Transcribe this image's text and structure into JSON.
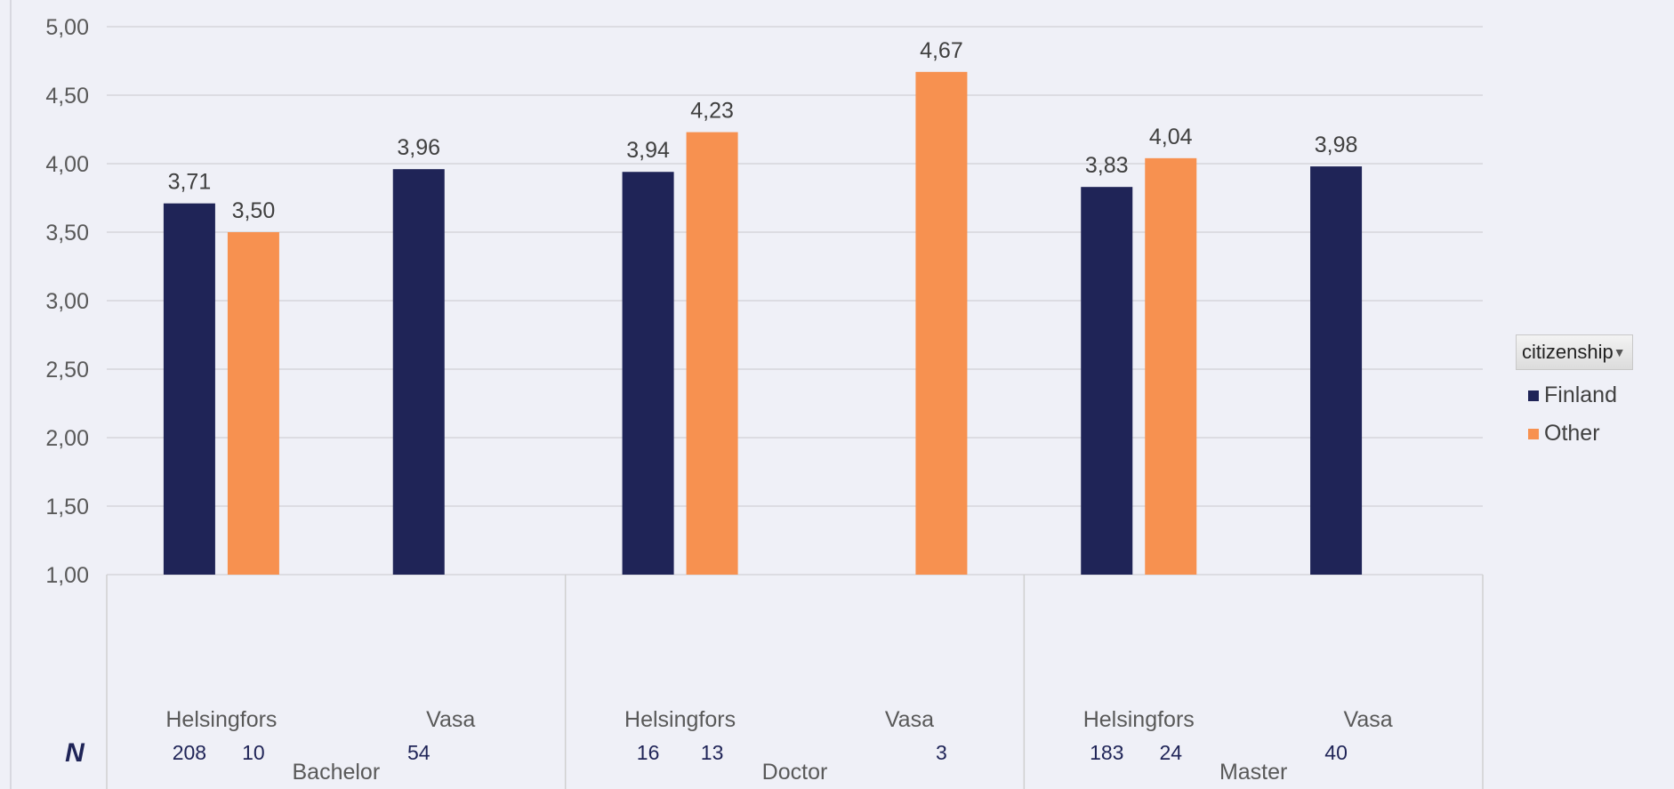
{
  "chart_data": {
    "type": "bar",
    "title": "",
    "ylim": [
      1.0,
      5.0
    ],
    "yticks": [
      "1,00",
      "1,50",
      "2,00",
      "2,50",
      "3,00",
      "3,50",
      "4,00",
      "4,50",
      "5,00"
    ],
    "grid": true,
    "legend_position": "right",
    "legend_title": "citizenship",
    "series": [
      {
        "name": "Finland",
        "color": "#1f2457"
      },
      {
        "name": "Other",
        "color": "#f79150"
      }
    ],
    "n_label": "N",
    "groups": [
      {
        "label": "Bachelor",
        "subgroups": [
          {
            "label": "Helsingfors",
            "bars": [
              {
                "series": "Finland",
                "value": 3.71,
                "label": "3,71",
                "n": "208"
              },
              {
                "series": "Other",
                "value": 3.5,
                "label": "3,50",
                "n": "10"
              }
            ]
          },
          {
            "label": "Vasa",
            "bars": [
              {
                "series": "Finland",
                "value": 3.96,
                "label": "3,96",
                "n": "54"
              }
            ]
          }
        ]
      },
      {
        "label": "Doctor",
        "subgroups": [
          {
            "label": "Helsingfors",
            "bars": [
              {
                "series": "Finland",
                "value": 3.94,
                "label": "3,94",
                "n": "16"
              },
              {
                "series": "Other",
                "value": 4.23,
                "label": "4,23",
                "n": "13"
              }
            ]
          },
          {
            "label": "Vasa",
            "bars": [
              {
                "series": "Other",
                "value": 4.67,
                "label": "4,67",
                "n": "3"
              }
            ]
          }
        ]
      },
      {
        "label": "Master",
        "subgroups": [
          {
            "label": "Helsingfors",
            "bars": [
              {
                "series": "Finland",
                "value": 3.83,
                "label": "3,83",
                "n": "183"
              },
              {
                "series": "Other",
                "value": 4.04,
                "label": "4,04",
                "n": "24"
              }
            ]
          },
          {
            "label": "Vasa",
            "bars": [
              {
                "series": "Finland",
                "value": 3.98,
                "label": "3,98",
                "n": "40"
              }
            ]
          }
        ]
      }
    ]
  },
  "legend": {
    "title": "citizenship",
    "items": [
      {
        "label": "Finland",
        "color": "#1f2457"
      },
      {
        "label": "Other",
        "color": "#f79150"
      }
    ]
  }
}
